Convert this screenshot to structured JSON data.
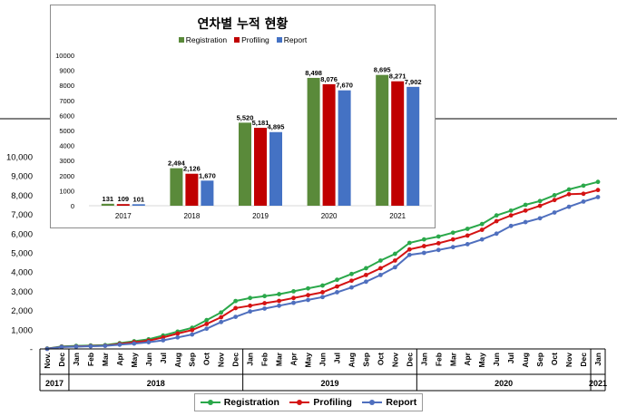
{
  "colors": {
    "registration": "#2aa84a",
    "profiling": "#d41313",
    "report": "#4f6fbe",
    "registration_bar": "#5a8a3a",
    "profiling_bar": "#c00000",
    "report_bar": "#4472c4"
  },
  "chart_data": [
    {
      "type": "line",
      "title": "",
      "xlabel": "",
      "ylabel": "",
      "ylim": [
        0,
        10000
      ],
      "y_ticks": [
        "-",
        "1,000",
        "2,000",
        "3,000",
        "4,000",
        "5,000",
        "6,000",
        "7,000",
        "8,000",
        "9,000",
        "10,000"
      ],
      "categories": [
        "Nov.",
        "Dec",
        "Jan",
        "Feb",
        "Mar",
        "Apr",
        "May",
        "Jun",
        "Jul",
        "Aug",
        "Sep",
        "Oct",
        "Nov",
        "Dec",
        "Jan",
        "Feb",
        "Mar",
        "Apr",
        "May",
        "Jun",
        "Jul",
        "Aug",
        "Sep",
        "Oct",
        "Nov",
        "Dec",
        "Jan",
        "Feb",
        "Mar",
        "Apr",
        "May",
        "Jun",
        "Jul",
        "Aug",
        "Sep",
        "Oct",
        "Nov",
        "Dec",
        "Jan"
      ],
      "year_groups": [
        {
          "label": "2017",
          "start": 0,
          "end": 1
        },
        {
          "label": "2018",
          "start": 2,
          "end": 13
        },
        {
          "label": "2019",
          "start": 14,
          "end": 25
        },
        {
          "label": "2020",
          "start": 26,
          "end": 37
        },
        {
          "label": "2021",
          "start": 38,
          "end": 38
        }
      ],
      "series": [
        {
          "name": "Registration",
          "values": [
            20,
            131,
            160,
            180,
            200,
            300,
            400,
            500,
            700,
            900,
            1100,
            1500,
            1900,
            2494,
            2650,
            2750,
            2850,
            3000,
            3150,
            3300,
            3600,
            3900,
            4200,
            4600,
            4950,
            5520,
            5700,
            5850,
            6050,
            6250,
            6500,
            6950,
            7200,
            7500,
            7700,
            8000,
            8300,
            8498,
            8695
          ]
        },
        {
          "name": "Profiling",
          "values": [
            10,
            109,
            130,
            150,
            170,
            260,
            350,
            430,
            600,
            800,
            980,
            1300,
            1650,
            2126,
            2250,
            2380,
            2500,
            2650,
            2800,
            2950,
            3250,
            3550,
            3850,
            4200,
            4600,
            5181,
            5350,
            5500,
            5700,
            5900,
            6200,
            6650,
            6950,
            7200,
            7450,
            7750,
            8050,
            8076,
            8271
          ]
        },
        {
          "name": "Report",
          "values": [
            5,
            101,
            120,
            140,
            160,
            220,
            280,
            350,
            450,
            600,
            750,
            1050,
            1400,
            1670,
            1950,
            2100,
            2250,
            2400,
            2550,
            2700,
            2950,
            3200,
            3500,
            3850,
            4250,
            4895,
            5000,
            5150,
            5300,
            5450,
            5700,
            6000,
            6400,
            6600,
            6800,
            7100,
            7400,
            7670,
            7902
          ]
        }
      ],
      "legend": "bottom",
      "grid": false
    },
    {
      "type": "bar",
      "title": "연차별 누적 현황",
      "xlabel": "",
      "ylabel": "",
      "ylim": [
        0,
        10000
      ],
      "y_ticks": [
        "0",
        "1000",
        "2000",
        "3000",
        "4000",
        "5000",
        "6000",
        "7000",
        "8000",
        "9000",
        "10000"
      ],
      "categories": [
        "2017",
        "2018",
        "2019",
        "2020",
        "2021"
      ],
      "series": [
        {
          "name": "Registration",
          "values": [
            131,
            2494,
            5520,
            8498,
            8695
          ],
          "labels": [
            "131",
            "2,494",
            "5,520",
            "8,498",
            "8,695"
          ]
        },
        {
          "name": "Profiling",
          "values": [
            109,
            2126,
            5181,
            8076,
            8271
          ],
          "labels": [
            "109",
            "2,126",
            "5,181",
            "8,076",
            "8,271"
          ]
        },
        {
          "name": "Report",
          "values": [
            101,
            1670,
            4895,
            7670,
            7902
          ],
          "labels": [
            "101",
            "1,670",
            "4,895",
            "7,670",
            "7,902"
          ]
        }
      ],
      "legend": "top",
      "grid": false
    }
  ]
}
